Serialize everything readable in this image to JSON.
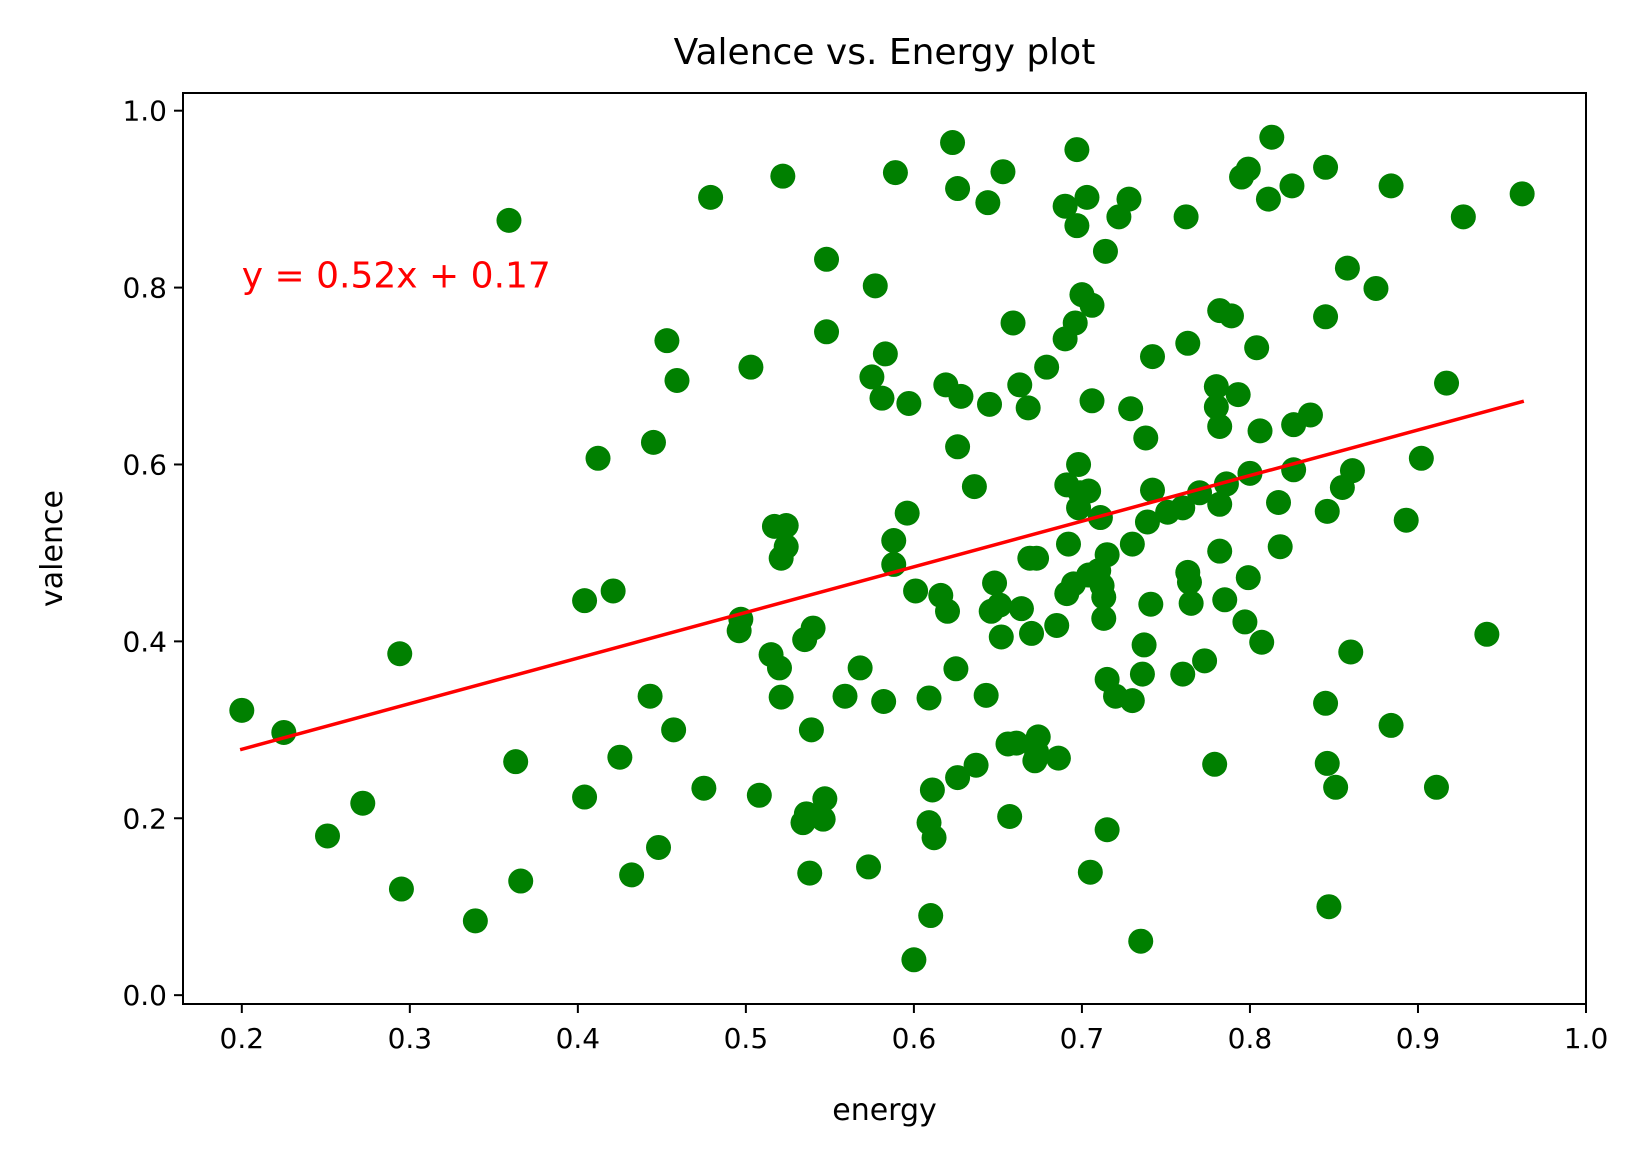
{
  "chart_data": {
    "type": "scatter",
    "title": "Valence vs. Energy plot",
    "xlabel": "energy",
    "ylabel": "valence",
    "xlim": [
      0.165,
      1.0
    ],
    "ylim": [
      -0.01,
      1.02
    ],
    "xticks": [
      0.2,
      0.3,
      0.4,
      0.5,
      0.6,
      0.7,
      0.8,
      0.9,
      1.0
    ],
    "xtick_labels": [
      "0.2",
      "0.3",
      "0.4",
      "0.5",
      "0.6",
      "0.7",
      "0.8",
      "0.9",
      "1.0"
    ],
    "yticks": [
      0.0,
      0.2,
      0.4,
      0.6,
      0.8,
      1.0
    ],
    "ytick_labels": [
      "0.0",
      "0.2",
      "0.4",
      "0.6",
      "0.8",
      "1.0"
    ],
    "grid": false,
    "point_color": "#008000",
    "line_color": "#ff0000",
    "annotation": {
      "text": "y = 0.52x + 0.17",
      "x": 0.2,
      "y": 0.8
    },
    "regression": {
      "x": [
        0.2,
        0.962
      ],
      "y": [
        0.278,
        0.671
      ]
    },
    "points": [
      [
        0.2,
        0.322
      ],
      [
        0.225,
        0.297
      ],
      [
        0.251,
        0.18
      ],
      [
        0.272,
        0.217
      ],
      [
        0.294,
        0.386
      ],
      [
        0.295,
        0.12
      ],
      [
        0.339,
        0.084
      ],
      [
        0.359,
        0.876
      ],
      [
        0.363,
        0.264
      ],
      [
        0.366,
        0.129
      ],
      [
        0.404,
        0.446
      ],
      [
        0.404,
        0.224
      ],
      [
        0.412,
        0.607
      ],
      [
        0.421,
        0.457
      ],
      [
        0.425,
        0.269
      ],
      [
        0.432,
        0.136
      ],
      [
        0.443,
        0.338
      ],
      [
        0.445,
        0.625
      ],
      [
        0.448,
        0.167
      ],
      [
        0.453,
        0.74
      ],
      [
        0.457,
        0.3
      ],
      [
        0.459,
        0.695
      ],
      [
        0.475,
        0.234
      ],
      [
        0.479,
        0.902
      ],
      [
        0.496,
        0.412
      ],
      [
        0.497,
        0.425
      ],
      [
        0.503,
        0.71
      ],
      [
        0.508,
        0.226
      ],
      [
        0.515,
        0.385
      ],
      [
        0.517,
        0.53
      ],
      [
        0.52,
        0.37
      ],
      [
        0.521,
        0.494
      ],
      [
        0.521,
        0.337
      ],
      [
        0.522,
        0.926
      ],
      [
        0.524,
        0.507
      ],
      [
        0.524,
        0.531
      ],
      [
        0.534,
        0.195
      ],
      [
        0.535,
        0.402
      ],
      [
        0.536,
        0.205
      ],
      [
        0.538,
        0.138
      ],
      [
        0.539,
        0.3
      ],
      [
        0.54,
        0.415
      ],
      [
        0.546,
        0.199
      ],
      [
        0.547,
        0.222
      ],
      [
        0.548,
        0.75
      ],
      [
        0.548,
        0.832
      ],
      [
        0.559,
        0.338
      ],
      [
        0.568,
        0.37
      ],
      [
        0.573,
        0.145
      ],
      [
        0.575,
        0.699
      ],
      [
        0.577,
        0.802
      ],
      [
        0.581,
        0.675
      ],
      [
        0.582,
        0.332
      ],
      [
        0.583,
        0.725
      ],
      [
        0.588,
        0.514
      ],
      [
        0.588,
        0.487
      ],
      [
        0.589,
        0.93
      ],
      [
        0.596,
        0.545
      ],
      [
        0.597,
        0.669
      ],
      [
        0.6,
        0.04
      ],
      [
        0.601,
        0.457
      ],
      [
        0.609,
        0.195
      ],
      [
        0.609,
        0.336
      ],
      [
        0.61,
        0.09
      ],
      [
        0.611,
        0.232
      ],
      [
        0.612,
        0.178
      ],
      [
        0.616,
        0.452
      ],
      [
        0.619,
        0.69
      ],
      [
        0.62,
        0.434
      ],
      [
        0.623,
        0.964
      ],
      [
        0.625,
        0.369
      ],
      [
        0.626,
        0.62
      ],
      [
        0.626,
        0.912
      ],
      [
        0.626,
        0.246
      ],
      [
        0.628,
        0.677
      ],
      [
        0.636,
        0.575
      ],
      [
        0.637,
        0.26
      ],
      [
        0.643,
        0.339
      ],
      [
        0.644,
        0.896
      ],
      [
        0.645,
        0.668
      ],
      [
        0.646,
        0.434
      ],
      [
        0.648,
        0.466
      ],
      [
        0.651,
        0.441
      ],
      [
        0.652,
        0.405
      ],
      [
        0.653,
        0.931
      ],
      [
        0.656,
        0.284
      ],
      [
        0.657,
        0.202
      ],
      [
        0.659,
        0.76
      ],
      [
        0.661,
        0.285
      ],
      [
        0.663,
        0.69
      ],
      [
        0.664,
        0.437
      ],
      [
        0.668,
        0.664
      ],
      [
        0.669,
        0.494
      ],
      [
        0.67,
        0.409
      ],
      [
        0.672,
        0.265
      ],
      [
        0.673,
        0.275
      ],
      [
        0.673,
        0.494
      ],
      [
        0.674,
        0.292
      ],
      [
        0.679,
        0.71
      ],
      [
        0.685,
        0.418
      ],
      [
        0.686,
        0.268
      ],
      [
        0.69,
        0.892
      ],
      [
        0.69,
        0.742
      ],
      [
        0.691,
        0.577
      ],
      [
        0.691,
        0.454
      ],
      [
        0.692,
        0.51
      ],
      [
        0.695,
        0.465
      ],
      [
        0.696,
        0.76
      ],
      [
        0.697,
        0.87
      ],
      [
        0.697,
        0.956
      ],
      [
        0.698,
        0.6
      ],
      [
        0.698,
        0.551
      ],
      [
        0.699,
        0.568
      ],
      [
        0.7,
        0.792
      ],
      [
        0.703,
        0.902
      ],
      [
        0.704,
        0.57
      ],
      [
        0.704,
        0.475
      ],
      [
        0.705,
        0.139
      ],
      [
        0.706,
        0.672
      ],
      [
        0.706,
        0.78
      ],
      [
        0.71,
        0.48
      ],
      [
        0.711,
        0.54
      ],
      [
        0.712,
        0.463
      ],
      [
        0.713,
        0.45
      ],
      [
        0.713,
        0.426
      ],
      [
        0.714,
        0.841
      ],
      [
        0.715,
        0.498
      ],
      [
        0.715,
        0.357
      ],
      [
        0.715,
        0.187
      ],
      [
        0.72,
        0.338
      ],
      [
        0.722,
        0.88
      ],
      [
        0.728,
        0.9
      ],
      [
        0.729,
        0.663
      ],
      [
        0.73,
        0.333
      ],
      [
        0.73,
        0.51
      ],
      [
        0.735,
        0.061
      ],
      [
        0.736,
        0.363
      ],
      [
        0.737,
        0.396
      ],
      [
        0.738,
        0.63
      ],
      [
        0.739,
        0.535
      ],
      [
        0.741,
        0.442
      ],
      [
        0.742,
        0.571
      ],
      [
        0.742,
        0.722
      ],
      [
        0.751,
        0.546
      ],
      [
        0.76,
        0.551
      ],
      [
        0.76,
        0.363
      ],
      [
        0.762,
        0.88
      ],
      [
        0.763,
        0.737
      ],
      [
        0.763,
        0.478
      ],
      [
        0.764,
        0.467
      ],
      [
        0.765,
        0.443
      ],
      [
        0.77,
        0.568
      ],
      [
        0.773,
        0.378
      ],
      [
        0.779,
        0.261
      ],
      [
        0.78,
        0.665
      ],
      [
        0.78,
        0.688
      ],
      [
        0.782,
        0.502
      ],
      [
        0.782,
        0.774
      ],
      [
        0.782,
        0.643
      ],
      [
        0.782,
        0.555
      ],
      [
        0.785,
        0.447
      ],
      [
        0.786,
        0.578
      ],
      [
        0.789,
        0.768
      ],
      [
        0.793,
        0.679
      ],
      [
        0.795,
        0.925
      ],
      [
        0.797,
        0.422
      ],
      [
        0.799,
        0.934
      ],
      [
        0.799,
        0.472
      ],
      [
        0.8,
        0.59
      ],
      [
        0.804,
        0.732
      ],
      [
        0.806,
        0.638
      ],
      [
        0.807,
        0.399
      ],
      [
        0.811,
        0.9
      ],
      [
        0.813,
        0.97
      ],
      [
        0.817,
        0.557
      ],
      [
        0.818,
        0.507
      ],
      [
        0.825,
        0.915
      ],
      [
        0.826,
        0.594
      ],
      [
        0.826,
        0.645
      ],
      [
        0.836,
        0.656
      ],
      [
        0.845,
        0.936
      ],
      [
        0.845,
        0.33
      ],
      [
        0.845,
        0.767
      ],
      [
        0.846,
        0.547
      ],
      [
        0.846,
        0.262
      ],
      [
        0.847,
        0.1
      ],
      [
        0.851,
        0.235
      ],
      [
        0.855,
        0.574
      ],
      [
        0.858,
        0.822
      ],
      [
        0.86,
        0.388
      ],
      [
        0.861,
        0.593
      ],
      [
        0.875,
        0.799
      ],
      [
        0.884,
        0.915
      ],
      [
        0.884,
        0.305
      ],
      [
        0.893,
        0.537
      ],
      [
        0.902,
        0.607
      ],
      [
        0.911,
        0.235
      ],
      [
        0.917,
        0.692
      ],
      [
        0.927,
        0.88
      ],
      [
        0.941,
        0.408
      ],
      [
        0.962,
        0.906
      ]
    ]
  }
}
